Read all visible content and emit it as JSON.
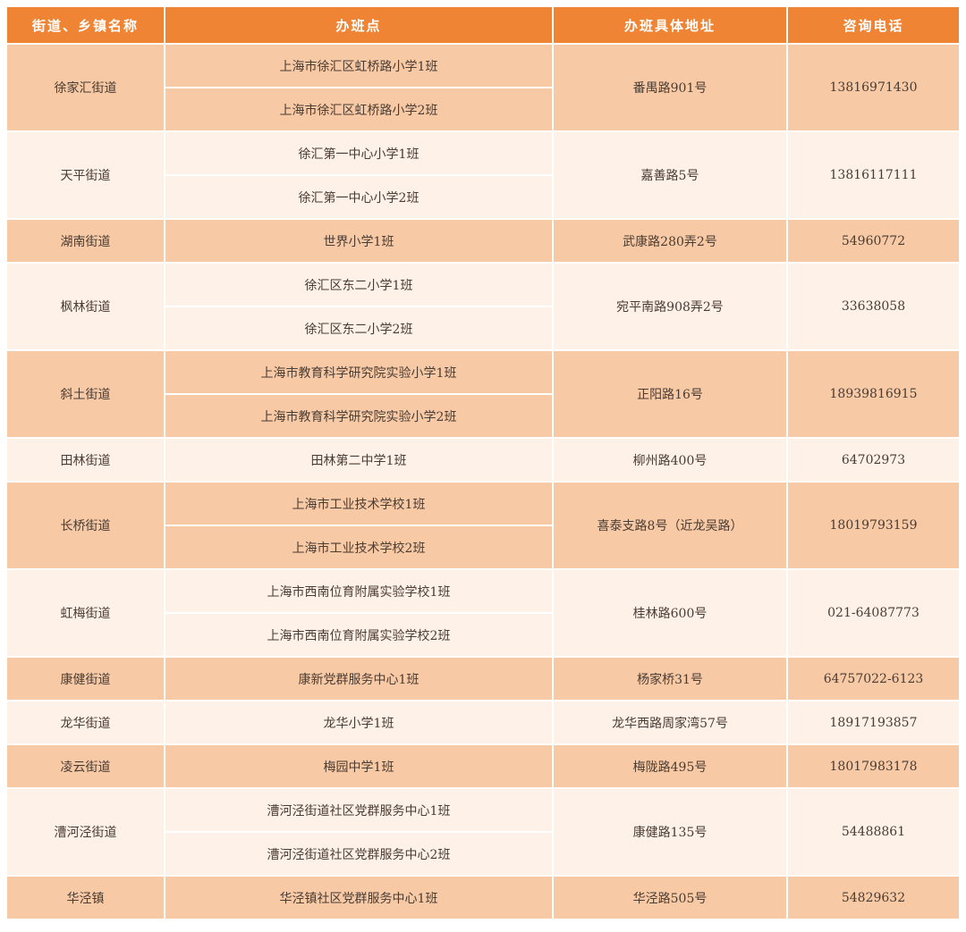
{
  "header": [
    "街道、乡镇名称",
    "办班点",
    "办班具体地址",
    "咨询电话"
  ],
  "colors": {
    "header": "#ee8434",
    "row_dark": "#f7c9a5",
    "row_light": "#fdf1e8"
  },
  "rows": [
    {
      "street": "徐家汇街道",
      "classes": [
        "上海市徐汇区虹桥路小学1班",
        "上海市徐汇区虹桥路小学2班"
      ],
      "address": "番禺路901号",
      "phone": "13816971430"
    },
    {
      "street": "天平街道",
      "classes": [
        "徐汇第一中心小学1班",
        "徐汇第一中心小学2班"
      ],
      "address": "嘉善路5号",
      "phone": "13816117111"
    },
    {
      "street": "湖南街道",
      "classes": [
        "世界小学1班"
      ],
      "address": "武康路280弄2号",
      "phone": "54960772"
    },
    {
      "street": "枫林街道",
      "classes": [
        "徐汇区东二小学1班",
        "徐汇区东二小学2班"
      ],
      "address": "宛平南路908弄2号",
      "phone": "33638058"
    },
    {
      "street": "斜土街道",
      "classes": [
        "上海市教育科学研究院实验小学1班",
        "上海市教育科学研究院实验小学2班"
      ],
      "address": "正阳路16号",
      "phone": "18939816915"
    },
    {
      "street": "田林街道",
      "classes": [
        "田林第二中学1班"
      ],
      "address": "柳州路400号",
      "phone": "64702973"
    },
    {
      "street": "长桥街道",
      "classes": [
        "上海市工业技术学校1班",
        "上海市工业技术学校2班"
      ],
      "address": "喜泰支路8号（近龙吴路）",
      "phone": "18019793159"
    },
    {
      "street": "虹梅街道",
      "classes": [
        "上海市西南位育附属实验学校1班",
        "上海市西南位育附属实验学校2班"
      ],
      "address": "桂林路600号",
      "phone": "021-64087773"
    },
    {
      "street": "康健街道",
      "classes": [
        "康新党群服务中心1班"
      ],
      "address": "杨家桥31号",
      "phone": "64757022-6123"
    },
    {
      "street": "龙华街道",
      "classes": [
        "龙华小学1班"
      ],
      "address": "龙华西路周家湾57号",
      "phone": "18917193857"
    },
    {
      "street": "凌云街道",
      "classes": [
        "梅园中学1班"
      ],
      "address": "梅陇路495号",
      "phone": "18017983178"
    },
    {
      "street": "漕河泾街道",
      "classes": [
        "漕河泾街道社区党群服务中心1班",
        "漕河泾街道社区党群服务中心2班"
      ],
      "address": "康健路135号",
      "phone": "54488861"
    },
    {
      "street": "华泾镇",
      "classes": [
        "华泾镇社区党群服务中心1班"
      ],
      "address": "华泾路505号",
      "phone": "54829632"
    }
  ]
}
